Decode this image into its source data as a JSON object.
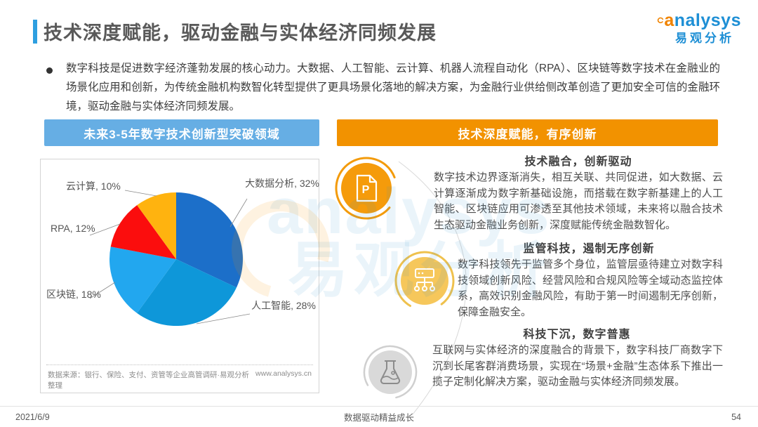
{
  "page": {
    "title": "技术深度赋能，驱动金融与实体经济同频发展",
    "bullet_text": "数字科技是促进数字经济蓬勃发展的核心动力。大数据、人工智能、云计算、机器人流程自动化（RPA）、区块链等数字技术在金融业的场景化应用和创新，为传统金融机构数智化转型提供了更具场景化落地的解决方案，为金融行业供给侧改革创造了更加安全可信的金融环境，驱动金融与实体经济同频发展。",
    "footer": {
      "date": "2021/6/9",
      "slogan": "数据驱动精益成长",
      "page_number": "54"
    }
  },
  "logo": {
    "brand_initial": "a",
    "brand_rest": "nalysys",
    "brand_cn": "易观分析"
  },
  "watermark": {
    "line1": "analysys",
    "line2": "易观分析"
  },
  "left_panel": {
    "header": "未来3-5年数字技术创新型突破领域",
    "header_color": "#66aee4",
    "source_note": "数据来源：银行、保险、支付、资管等企业高管调研·易观分析整理",
    "website": "www.analysys.cn"
  },
  "right_panel": {
    "header": "技术深度赋能，有序创新",
    "header_color": "#f29200",
    "sections": [
      {
        "icon": "document-p-icon",
        "title": "技术融合，创新驱动",
        "body": "数字技术边界逐渐消失，相互关联、共同促进，如大数据、云计算逐渐成为数字新基础设施，而搭载在数字新基建上的人工智能、区块链应用可渗透至其他技术领域，未来将以融合技术生态驱动金融业务创新，深度赋能传统金融数智化。"
      },
      {
        "icon": "flowchart-icon",
        "title": "监管科技，遏制无序创新",
        "body": "数字科技领先于监管多个身位，监管层亟待建立对数字科技领域创新风险、经营风险和合规风险等全域动态监控体系，高效识别金融风险，有助于第一时间遏制无序创新，保障金融安全。"
      },
      {
        "icon": "flask-icon",
        "title": "科技下沉，数字普惠",
        "body": "互联网与实体经济的深度融合的背景下，数字科技厂商数字下沉到长尾客群消费场景，实现在“场景+金融”生态体系下推出一揽子定制化解决方案，驱动金融与实体经济同频发展。"
      }
    ]
  },
  "chart_data": {
    "type": "pie",
    "title": "未来3-5年数字技术创新型突破领域",
    "categories": [
      "大数据分析",
      "人工智能",
      "区块链",
      "RPA",
      "云计算"
    ],
    "values": [
      32,
      28,
      18,
      12,
      10
    ],
    "unit": "%",
    "colors": [
      "#1c6fc9",
      "#0e97d9",
      "#22a7ef",
      "#fb0d0d",
      "#ffb30f"
    ],
    "point_labels": [
      "大数据分析, 32%",
      "人工智能, 28%",
      "区块链, 18%",
      "RPA, 12%",
      "云计算, 10%"
    ],
    "start_angle_deg": -90,
    "direction": "clockwise",
    "legend_position": "none",
    "data_labels": true
  }
}
